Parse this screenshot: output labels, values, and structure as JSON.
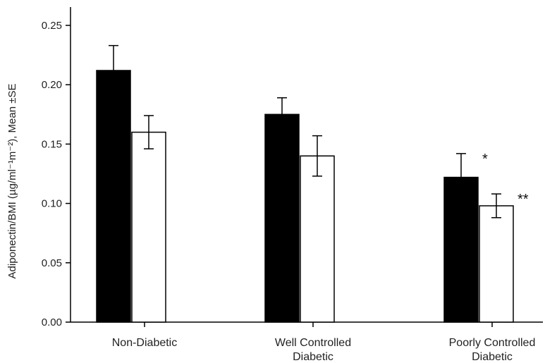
{
  "chart_data": {
    "type": "bar",
    "title": "",
    "xlabel": "",
    "ylabel": "Adiponectin/BMI (µg/ml⁻¹m⁻²), Mean ±SE",
    "ylim": [
      0,
      0.25
    ],
    "y_ticks": [
      "0.00",
      "0.05",
      "0.10",
      "0.15",
      "0.20",
      "0.25"
    ],
    "y_tick_values": [
      0,
      0.05,
      0.1,
      0.15,
      0.2,
      0.25
    ],
    "categories": [
      [
        "Non-Diabetic"
      ],
      [
        "Well Controlled",
        "Diabetic"
      ],
      [
        "Poorly Controlled",
        "Diabetic"
      ]
    ],
    "grid": false,
    "series": [
      {
        "fill": "#000000",
        "values": [
          0.212,
          0.175,
          0.122
        ],
        "errors": [
          0.021,
          0.014,
          0.02
        ],
        "annotations": [
          "",
          "",
          "*"
        ]
      },
      {
        "fill": "#ffffff",
        "values": [
          0.16,
          0.14,
          0.098
        ],
        "errors": [
          0.014,
          0.017,
          0.01
        ],
        "annotations": [
          "",
          "",
          "**"
        ]
      }
    ]
  }
}
